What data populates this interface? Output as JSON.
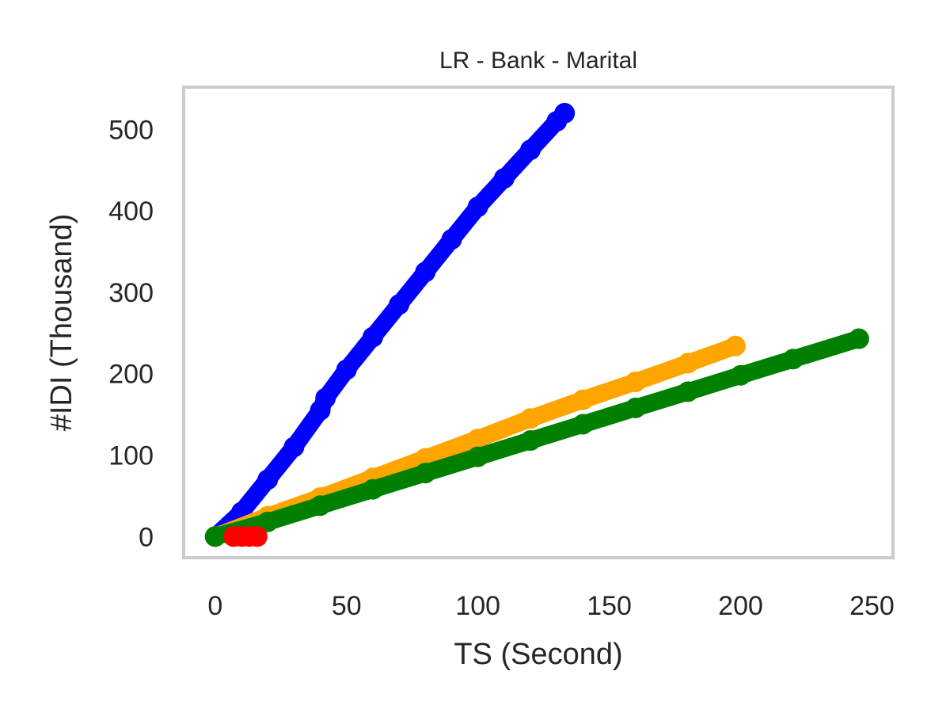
{
  "chart_data": {
    "type": "line",
    "title": "LR - Bank - Marital",
    "xlabel": "TS (Second)",
    "ylabel": "#IDI (Thousand)",
    "xlim": [
      -12,
      258
    ],
    "ylim": [
      -26,
      552
    ],
    "xticks": [
      0,
      50,
      100,
      150,
      200,
      250
    ],
    "yticks": [
      0,
      100,
      200,
      300,
      400,
      500
    ],
    "xtick_labels": [
      "0",
      "50",
      "100",
      "150",
      "200",
      "250"
    ],
    "ytick_labels": [
      "0",
      "100",
      "200",
      "300",
      "400",
      "500"
    ],
    "grid": false,
    "legend": "none",
    "series": [
      {
        "color": "#0000ff",
        "x": [
          0,
          10,
          20,
          30,
          40,
          42,
          50,
          60,
          70,
          80,
          90,
          100,
          110,
          120,
          130,
          133
        ],
        "y": [
          0,
          30,
          70,
          110,
          155,
          170,
          205,
          245,
          285,
          325,
          365,
          405,
          440,
          475,
          510,
          520
        ]
      },
      {
        "color": "#ffa500",
        "x": [
          0,
          20,
          40,
          60,
          80,
          100,
          120,
          140,
          160,
          180,
          198
        ],
        "y": [
          0,
          25,
          48,
          72,
          96,
          120,
          145,
          168,
          190,
          213,
          234
        ]
      },
      {
        "color": "#008000",
        "x": [
          0,
          20,
          40,
          60,
          80,
          100,
          120,
          140,
          160,
          180,
          200,
          220,
          245
        ],
        "y": [
          0,
          18,
          38,
          58,
          78,
          98,
          118,
          138,
          158,
          178,
          198,
          218,
          243
        ]
      },
      {
        "color": "#ff0000",
        "x": [
          7,
          10,
          13,
          16
        ],
        "y": [
          0,
          0,
          0,
          0
        ]
      }
    ]
  }
}
